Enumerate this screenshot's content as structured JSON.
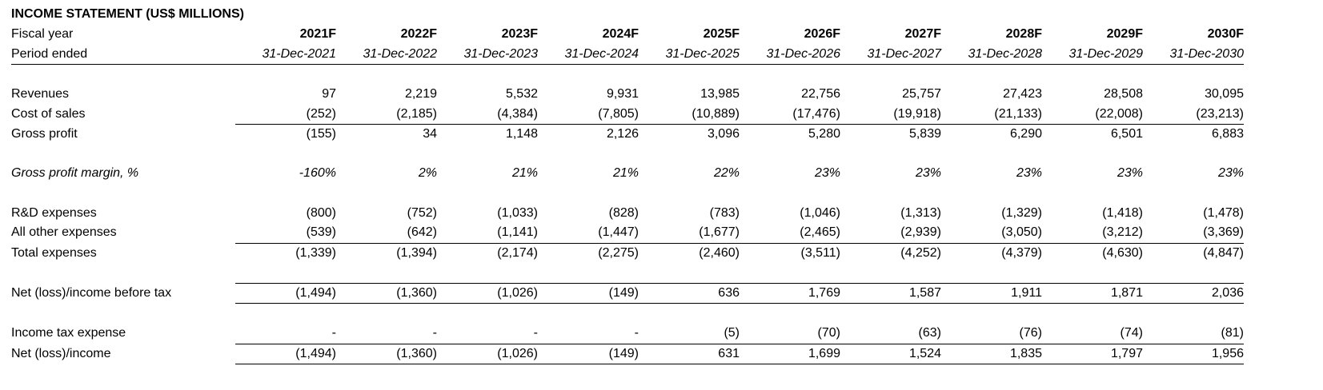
{
  "title": "INCOME STATEMENT (US$ MILLIONS)",
  "header": {
    "fiscal_year_label": "Fiscal year",
    "period_ended_label": "Period ended",
    "years": [
      "2021F",
      "2022F",
      "2023F",
      "2024F",
      "2025F",
      "2026F",
      "2027F",
      "2028F",
      "2029F",
      "2030F"
    ],
    "dates": [
      "31-Dec-2021",
      "31-Dec-2022",
      "31-Dec-2023",
      "31-Dec-2024",
      "31-Dec-2025",
      "31-Dec-2026",
      "31-Dec-2027",
      "31-Dec-2028",
      "31-Dec-2029",
      "31-Dec-2030"
    ]
  },
  "rows": {
    "revenues": {
      "label": "Revenues",
      "values": [
        "97",
        "2,219",
        "5,532",
        "9,931",
        "13,985",
        "22,756",
        "25,757",
        "27,423",
        "28,508",
        "30,095"
      ]
    },
    "cost_of_sales": {
      "label": "Cost of sales",
      "values": [
        "(252)",
        "(2,185)",
        "(4,384)",
        "(7,805)",
        "(10,889)",
        "(17,476)",
        "(19,918)",
        "(21,133)",
        "(22,008)",
        "(23,213)"
      ]
    },
    "gross_profit": {
      "label": "Gross profit",
      "values": [
        "(155)",
        "34",
        "1,148",
        "2,126",
        "3,096",
        "5,280",
        "5,839",
        "6,290",
        "6,501",
        "6,883"
      ]
    },
    "gross_margin": {
      "label": "Gross profit margin, %",
      "values": [
        "-160%",
        "2%",
        "21%",
        "21%",
        "22%",
        "23%",
        "23%",
        "23%",
        "23%",
        "23%"
      ]
    },
    "rd_expenses": {
      "label": "R&D expenses",
      "values": [
        "(800)",
        "(752)",
        "(1,033)",
        "(828)",
        "(783)",
        "(1,046)",
        "(1,313)",
        "(1,329)",
        "(1,418)",
        "(1,478)"
      ]
    },
    "other_expenses": {
      "label": "All other expenses",
      "values": [
        "(539)",
        "(642)",
        "(1,141)",
        "(1,447)",
        "(1,677)",
        "(2,465)",
        "(2,939)",
        "(3,050)",
        "(3,212)",
        "(3,369)"
      ]
    },
    "total_expenses": {
      "label": "Total expenses",
      "values": [
        "(1,339)",
        "(1,394)",
        "(2,174)",
        "(2,275)",
        "(2,460)",
        "(3,511)",
        "(4,252)",
        "(4,379)",
        "(4,630)",
        "(4,847)"
      ]
    },
    "net_before_tax": {
      "label": "Net (loss)/income before tax",
      "values": [
        "(1,494)",
        "(1,360)",
        "(1,026)",
        "(149)",
        "636",
        "1,769",
        "1,587",
        "1,911",
        "1,871",
        "2,036"
      ]
    },
    "income_tax": {
      "label": "Income tax expense",
      "values": [
        "-",
        "-",
        "-",
        "-",
        "(5)",
        "(70)",
        "(63)",
        "(76)",
        "(74)",
        "(81)"
      ]
    },
    "net_income": {
      "label": "Net (loss)/income",
      "values": [
        "(1,494)",
        "(1,360)",
        "(1,026)",
        "(149)",
        "631",
        "1,699",
        "1,524",
        "1,835",
        "1,797",
        "1,956"
      ]
    }
  }
}
